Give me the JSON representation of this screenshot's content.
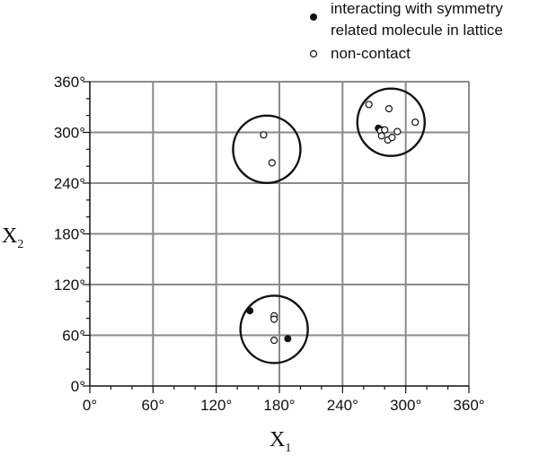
{
  "chart_data": {
    "type": "scatter",
    "title": "",
    "xlabel": {
      "main": "X",
      "sub": "1"
    },
    "ylabel": {
      "main": "X",
      "sub": "2"
    },
    "xlim": [
      0,
      360
    ],
    "ylim": [
      0,
      360
    ],
    "x_ticks": [
      0,
      60,
      120,
      180,
      240,
      300,
      360
    ],
    "y_ticks": [
      0,
      60,
      120,
      180,
      240,
      300,
      360
    ],
    "x_tick_labels": [
      "0°",
      "60°",
      "120°",
      "180°",
      "240°",
      "300°",
      "360°"
    ],
    "y_tick_labels": [
      "0°",
      "60°",
      "120°",
      "180°",
      "240°",
      "300°",
      "360°"
    ],
    "grid": true,
    "legend_position": "top-right",
    "legend": {
      "filled_line1": "interacting with symmetry",
      "filled_line2": "related molecule in lattice",
      "open": "non-contact"
    },
    "series": [
      {
        "marker": "filled",
        "points": [
          [
            152,
            89
          ],
          [
            188,
            56
          ],
          [
            274,
            305
          ],
          [
            277,
            303
          ]
        ]
      },
      {
        "marker": "open",
        "points": [
          [
            165,
            297
          ],
          [
            173,
            264
          ],
          [
            175,
            83
          ],
          [
            175,
            79
          ],
          [
            175,
            54
          ],
          [
            265,
            333
          ],
          [
            284,
            328
          ],
          [
            309,
            312
          ],
          [
            276,
            302
          ],
          [
            280,
            303
          ],
          [
            277,
            296
          ],
          [
            283,
            291
          ],
          [
            287,
            294
          ],
          [
            292,
            301
          ]
        ]
      }
    ],
    "circles": [
      {
        "cx": 168,
        "cy": 280,
        "r": 32
      },
      {
        "cx": 175,
        "cy": 67,
        "r": 32
      },
      {
        "cx": 286,
        "cy": 312,
        "r": 32
      }
    ]
  }
}
